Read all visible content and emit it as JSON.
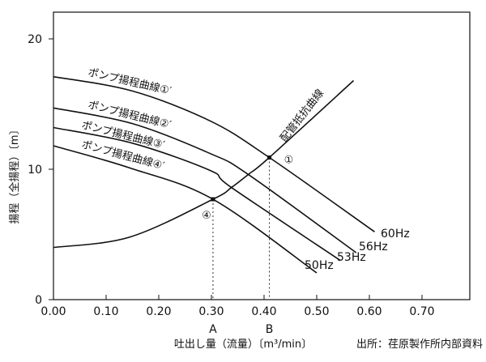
{
  "chart_data": {
    "type": "line",
    "title": "",
    "xlabel": "吐出し量（流量）〔m³/min〕",
    "ylabel": "揚程（全揚程）〔m〕",
    "xlim": [
      0,
      0.79
    ],
    "ylim": [
      0,
      22
    ],
    "x_ticks": [
      "0.00",
      "0.10",
      "0.20",
      "0.30",
      "0.40",
      "0.50",
      "0.60",
      "0.70"
    ],
    "x_tick_values": [
      0,
      0.1,
      0.2,
      0.3,
      0.4,
      0.5,
      0.6,
      0.7
    ],
    "y_ticks": [
      "0",
      "10",
      "20"
    ],
    "y_tick_values": [
      0,
      10,
      20
    ],
    "grid": false,
    "series": [
      {
        "name": "ポンプ揚程曲線①′",
        "freq": "60Hz",
        "points": [
          [
            0,
            17.1
          ],
          [
            0.15,
            16.0
          ],
          [
            0.298,
            13.7
          ],
          [
            0.41,
            10.9
          ],
          [
            0.61,
            5.2
          ]
        ]
      },
      {
        "name": "ポンプ揚程曲線②′",
        "freq": "56Hz",
        "points": [
          [
            0,
            14.7
          ],
          [
            0.15,
            13.5
          ],
          [
            0.298,
            11.2
          ],
          [
            0.37,
            9.6
          ],
          [
            0.575,
            3.6
          ]
        ]
      },
      {
        "name": "ポンプ揚程曲線③′",
        "freq": "53Hz",
        "points": [
          [
            0,
            13.2
          ],
          [
            0.15,
            12.0
          ],
          [
            0.298,
            9.9
          ],
          [
            0.338,
            8.6
          ],
          [
            0.545,
            3.0
          ]
        ]
      },
      {
        "name": "ポンプ揚程曲線④′",
        "freq": "50Hz",
        "points": [
          [
            0,
            11.8
          ],
          [
            0.145,
            10.1
          ],
          [
            0.303,
            7.7
          ],
          [
            0.5,
            2.05
          ]
        ]
      },
      {
        "name": "配管抵抗曲線",
        "freq": "",
        "points": [
          [
            0,
            4.0
          ],
          [
            0.145,
            4.8
          ],
          [
            0.303,
            7.7
          ],
          [
            0.338,
            8.6
          ],
          [
            0.37,
            9.6
          ],
          [
            0.41,
            10.9
          ],
          [
            0.57,
            16.8
          ]
        ]
      }
    ],
    "operating_points": [
      {
        "label": "①",
        "x": 0.41,
        "y": 10.9,
        "x_marker": "B"
      },
      {
        "label": "④",
        "x": 0.303,
        "y": 7.7,
        "x_marker": "A"
      }
    ],
    "source": "出所：荏原製作所内部資料"
  }
}
